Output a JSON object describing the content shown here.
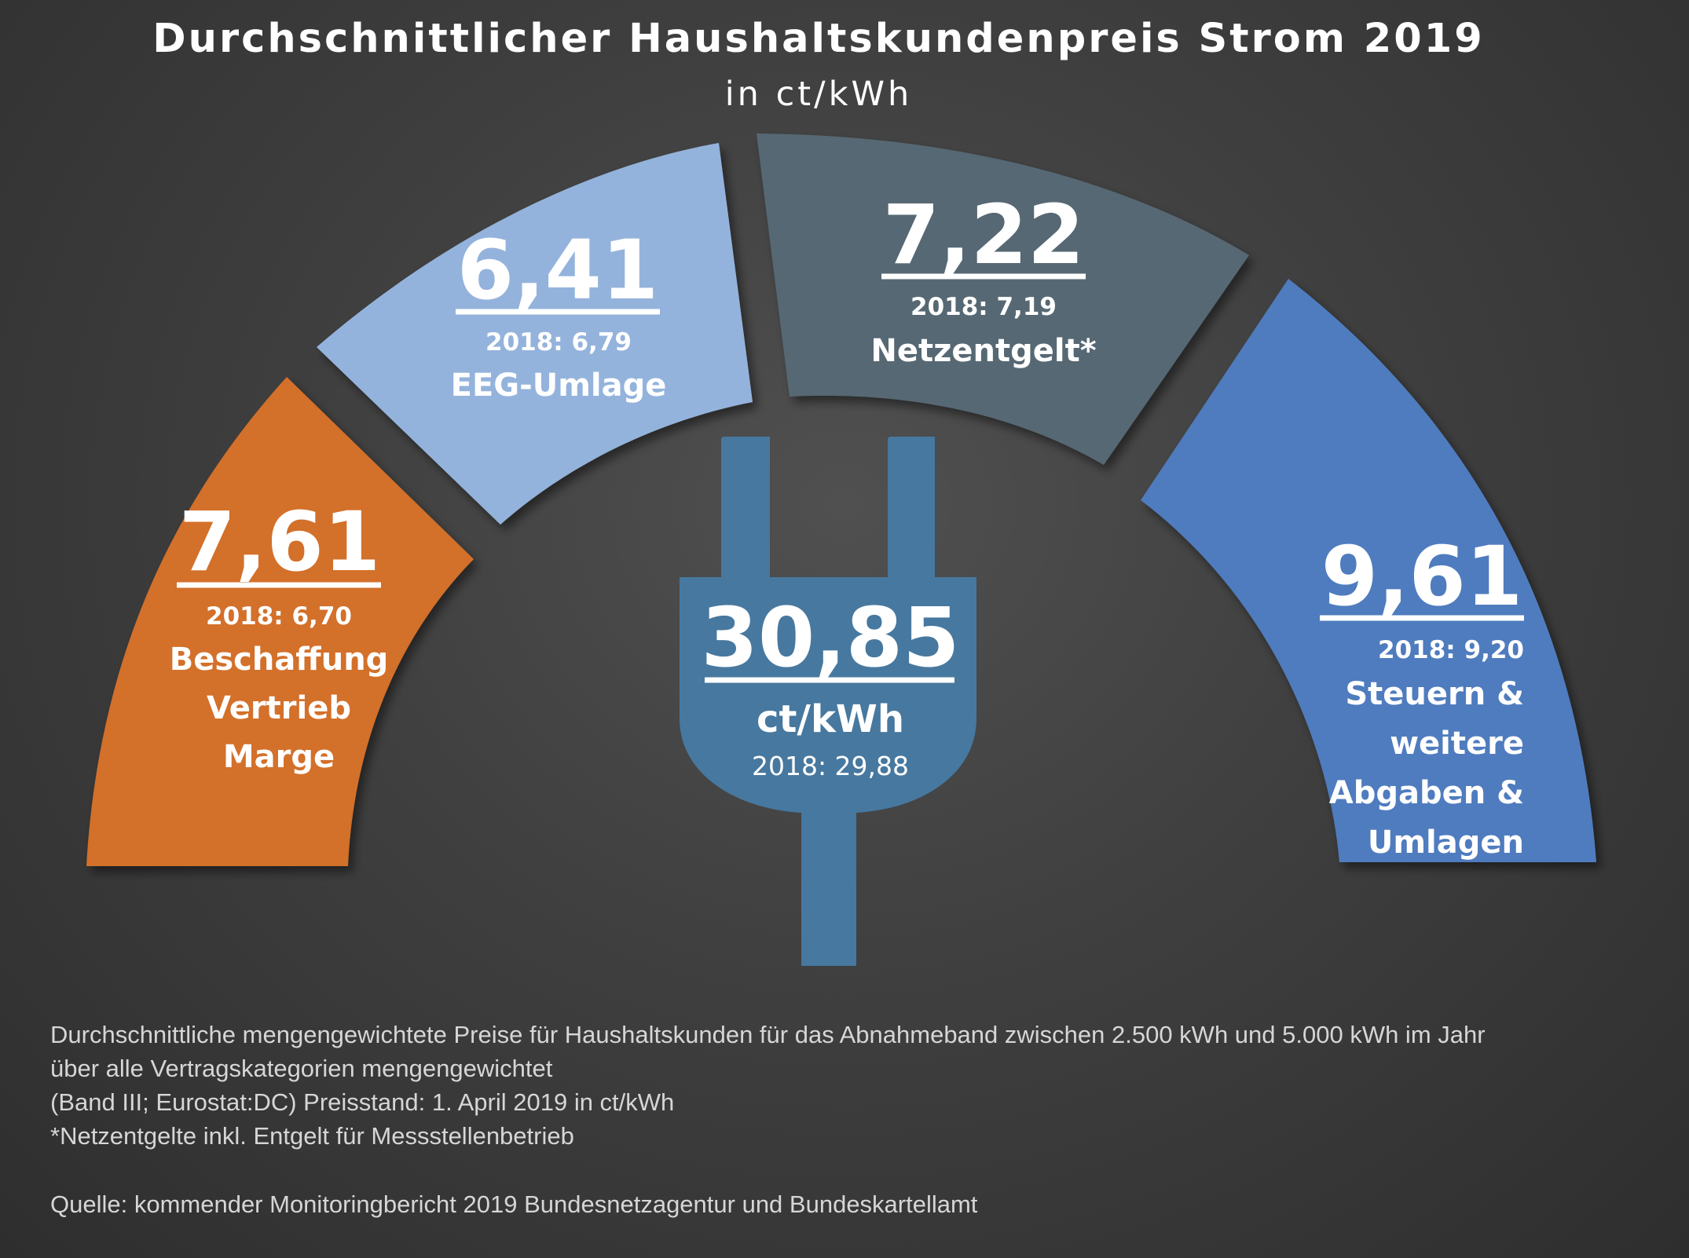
{
  "chart_data": {
    "type": "pie",
    "title": "Durchschnittlicher Haushaltskundenpreis Strom 2019",
    "subtitle": "in ct/kWh",
    "segments": [
      {
        "id": "beschaffung",
        "value": "7,61",
        "prev": "2018: 6,70",
        "label_lines": [
          "Beschaffung",
          "Vertrieb",
          "Marge"
        ],
        "color": "#d3702a"
      },
      {
        "id": "eeg",
        "value": "6,41",
        "prev": "2018: 6,79",
        "label_lines": [
          "EEG-Umlage"
        ],
        "color": "#94b3dc"
      },
      {
        "id": "netz",
        "value": "7,22",
        "prev": "2018: 7,19",
        "label_lines": [
          "Netzentgelt*"
        ],
        "color": "#566873"
      },
      {
        "id": "steuern",
        "value": "9,61",
        "prev": "2018: 9,20",
        "label_lines": [
          "Steuern &",
          "weitere",
          "Abgaben &",
          "Umlagen"
        ],
        "color": "#4f7cbe"
      }
    ],
    "total": {
      "value": "30,85",
      "unit": "ct/kWh",
      "prev": "2018: 29,88",
      "color": "#47789f"
    }
  },
  "footnotes": {
    "lines": [
      "Durchschnittliche mengengewichtete Preise für Haushaltskunden für das Abnahmeband zwischen 2.500 kWh und 5.000 kWh im Jahr",
      "über alle Vertragskategorien mengengewichtet",
      "(Band III; Eurostat:DC) Preisstand: 1. April 2019 in ct/kWh",
      "*Netzentgelte inkl. Entgelt für Messstellenbetrieb"
    ],
    "source": "Quelle: kommender Monitoringbericht  2019  Bundesnetzagentur und Bundeskartellamt"
  }
}
